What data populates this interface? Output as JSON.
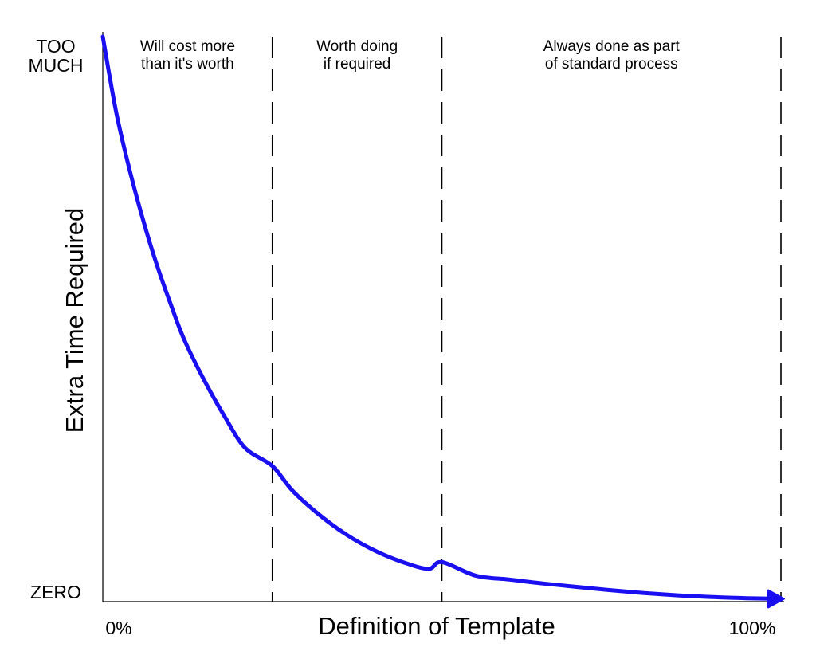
{
  "chart_data": {
    "type": "line",
    "title": "",
    "xlabel": "Definition of Template",
    "ylabel": "Extra Time Required",
    "xlim": [
      0,
      100
    ],
    "ylim": [
      0,
      100
    ],
    "x_ticks": [
      {
        "label": "0%",
        "value": 0
      },
      {
        "label": "100%",
        "value": 100
      }
    ],
    "y_ticks": [
      {
        "label_lines": [
          "TOO",
          "MUCH"
        ],
        "value": 100
      },
      {
        "label_lines": [
          "ZERO"
        ],
        "value": 0
      }
    ],
    "dividers_x": [
      25,
      50,
      100
    ],
    "zones": [
      {
        "lines": [
          "Will cost more",
          "than it's worth"
        ],
        "x_start": 0,
        "x_end": 25
      },
      {
        "lines": [
          "Worth doing",
          "if required"
        ],
        "x_start": 25,
        "x_end": 50
      },
      {
        "lines": [
          "Always done as part",
          "of standard process"
        ],
        "x_start": 50,
        "x_end": 100
      }
    ],
    "series": [
      {
        "color": "#1a0ff0",
        "arrow": true,
        "points": [
          [
            0,
            100
          ],
          [
            2,
            86.5
          ],
          [
            4,
            76.2
          ],
          [
            6,
            67.3
          ],
          [
            8,
            59.5
          ],
          [
            10,
            52.7
          ],
          [
            12,
            46.4
          ],
          [
            15,
            39.1
          ],
          [
            18,
            32.7
          ],
          [
            21,
            27.2
          ],
          [
            25,
            24.0
          ],
          [
            28,
            19.6
          ],
          [
            32,
            15.3
          ],
          [
            36,
            11.8
          ],
          [
            40,
            9.1
          ],
          [
            44,
            7.1
          ],
          [
            48,
            5.8
          ],
          [
            50,
            7.0
          ],
          [
            55,
            4.6
          ],
          [
            60,
            3.9
          ],
          [
            65,
            3.2
          ],
          [
            70,
            2.6
          ],
          [
            75,
            2.0
          ],
          [
            80,
            1.5
          ],
          [
            85,
            1.1
          ],
          [
            90,
            0.8
          ],
          [
            95,
            0.6
          ],
          [
            100,
            0.5
          ]
        ]
      }
    ],
    "grid": false,
    "legend": "none"
  }
}
